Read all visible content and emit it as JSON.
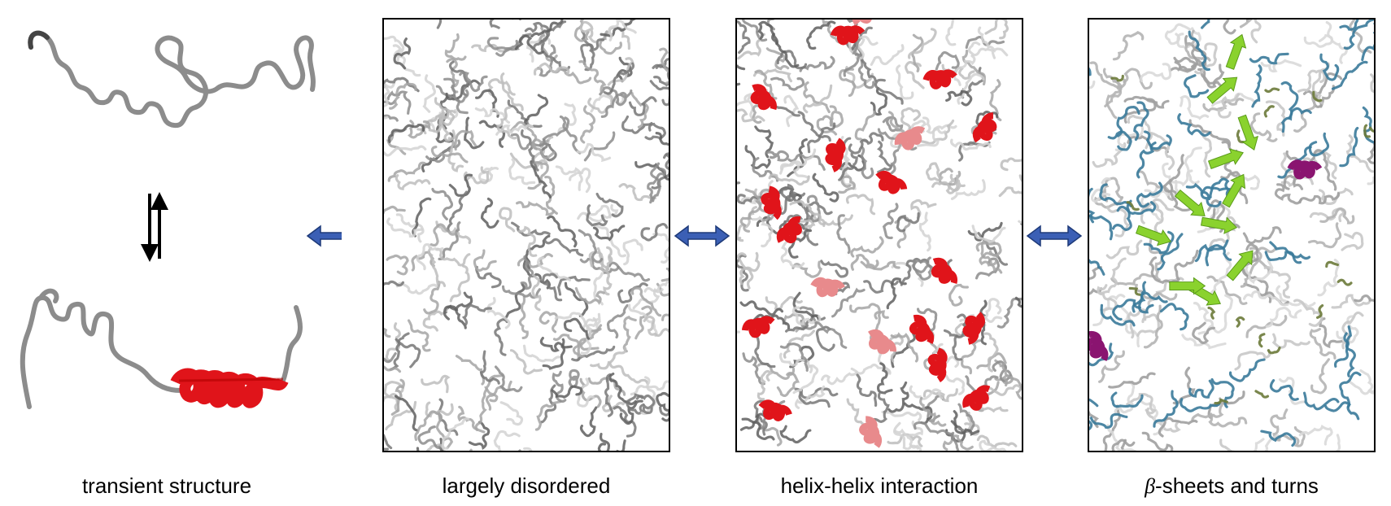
{
  "captions": {
    "transient": "transient structure",
    "disordered": "largely disordered",
    "helix_helix": "helix-helix interaction",
    "beta_symbol": "β",
    "beta_rest": "-sheets and turns"
  },
  "colors": {
    "coil": "#8c8c8c",
    "coil_dark": "#555555",
    "coil_light": "#c8c8c8",
    "helix": "#e0141a",
    "strand": "#8ad22e",
    "teal": "#3a7a9a",
    "olive": "#6b7a3a",
    "purple": "#8a1470",
    "arrow_blue": "#3b5fb5",
    "arrow_outline": "#1e3a78"
  },
  "icons": [
    "equilibrium-arrows-icon",
    "double-arrow-icon"
  ]
}
